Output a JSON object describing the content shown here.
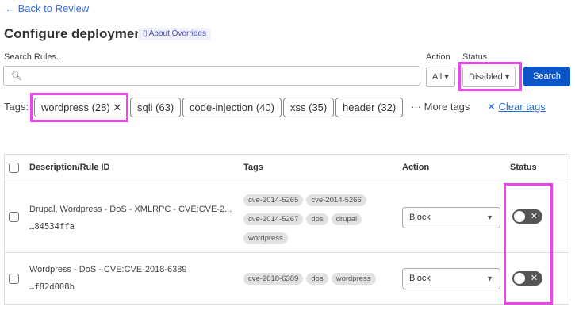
{
  "nav": {
    "back_label": "← Back to Review"
  },
  "header": {
    "title": "Configure deployment",
    "about_label": "About Overrides"
  },
  "filters": {
    "search_label": "Search Rules...",
    "search_value": "",
    "action_label": "Action",
    "action_value": "All",
    "status_label": "Status",
    "status_value": "Disabled",
    "search_button": "Search"
  },
  "tags": {
    "label": "Tags:",
    "items": [
      {
        "label": "wordpress (28)",
        "selected": true
      },
      {
        "label": "sqli (63)"
      },
      {
        "label": "code-injection (40)"
      },
      {
        "label": "xss (35)"
      },
      {
        "label": "header (32)"
      }
    ],
    "more_label": "More tags",
    "clear_label": "Clear tags"
  },
  "table": {
    "headers": {
      "description": "Description/Rule ID",
      "tags": "Tags",
      "action": "Action",
      "status": "Status"
    },
    "rows": [
      {
        "description": "Drupal, Wordpress - DoS - XMLRPC - CVE:CVE-2...",
        "rule_id": "…84534ffa",
        "tags": [
          "cve-2014-5265",
          "cve-2014-5266",
          "cve-2014-5267",
          "dos",
          "drupal",
          "wordpress"
        ],
        "action": "Block",
        "enabled": false
      },
      {
        "description": "Wordpress - DoS - CVE:CVE-2018-6389",
        "rule_id": "…f82d008b",
        "tags": [
          "cve-2018-6389",
          "dos",
          "wordpress"
        ],
        "action": "Block",
        "enabled": false
      }
    ]
  },
  "colors": {
    "accent": "#0b55c7",
    "highlight": "#ee44ee",
    "link": "#2f6fd1"
  }
}
